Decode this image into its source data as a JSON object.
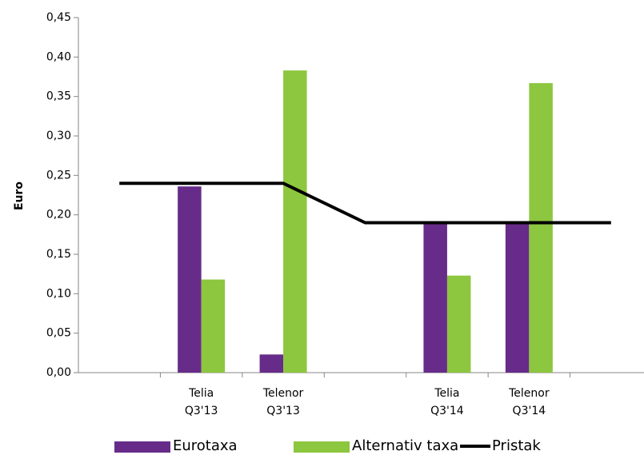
{
  "chart_data": {
    "type": "bar",
    "ylabel": "Euro",
    "categories": [
      null,
      "Telia Q3'13",
      "Telenor Q3'13",
      null,
      "Telia Q3'14",
      "Telenor Q3'14",
      null
    ],
    "series": [
      {
        "name": "Eurotaxa",
        "color": "#672c89",
        "kind": "bar",
        "values": [
          null,
          0.236,
          0.023,
          null,
          0.19,
          0.19,
          null
        ]
      },
      {
        "name": "Alternativ taxa",
        "color": "#8dc63f",
        "kind": "bar",
        "values": [
          null,
          0.118,
          0.383,
          null,
          0.123,
          0.367,
          null
        ]
      },
      {
        "name": "Pristak",
        "color": "#000000",
        "kind": "line",
        "values": [
          0.24,
          0.24,
          0.24,
          0.19,
          0.19,
          0.19,
          0.19
        ]
      }
    ],
    "ylim": [
      0,
      0.45
    ],
    "yticks": [
      {
        "value": 0,
        "label": "0,00"
      },
      {
        "value": 0.05,
        "label": "0,05"
      },
      {
        "value": 0.1,
        "label": "0,10"
      },
      {
        "value": 0.15,
        "label": "0,15"
      },
      {
        "value": 0.2,
        "label": "0,20"
      },
      {
        "value": 0.25,
        "label": "0,25"
      },
      {
        "value": 0.3,
        "label": "0,30"
      },
      {
        "value": 0.35,
        "label": "0,35"
      },
      {
        "value": 0.4,
        "label": "0,40"
      },
      {
        "value": 0.45,
        "label": "0,45"
      }
    ],
    "grid": false,
    "legend": "bottom"
  }
}
